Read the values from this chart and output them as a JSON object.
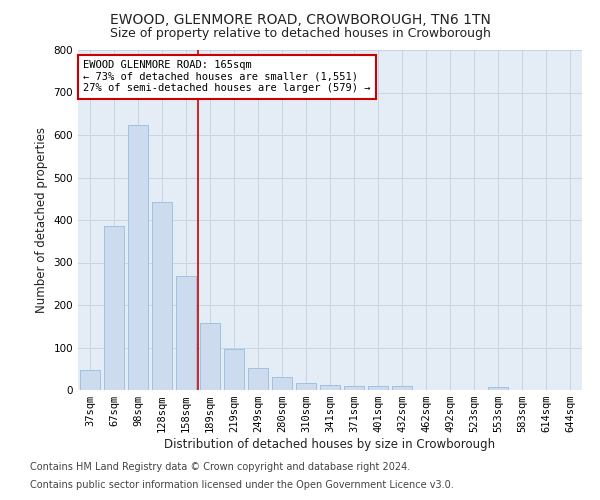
{
  "title": "EWOOD, GLENMORE ROAD, CROWBOROUGH, TN6 1TN",
  "subtitle": "Size of property relative to detached houses in Crowborough",
  "xlabel": "Distribution of detached houses by size in Crowborough",
  "ylabel": "Number of detached properties",
  "categories": [
    "37sqm",
    "67sqm",
    "98sqm",
    "128sqm",
    "158sqm",
    "189sqm",
    "219sqm",
    "249sqm",
    "280sqm",
    "310sqm",
    "341sqm",
    "371sqm",
    "401sqm",
    "432sqm",
    "462sqm",
    "492sqm",
    "523sqm",
    "553sqm",
    "583sqm",
    "614sqm",
    "644sqm"
  ],
  "values": [
    48,
    385,
    623,
    443,
    268,
    157,
    97,
    52,
    30,
    17,
    12,
    10,
    10,
    10,
    0,
    0,
    0,
    7,
    0,
    0,
    0
  ],
  "bar_color": "#ccdcee",
  "bar_edgecolor": "#99bbdd",
  "grid_color": "#c8d4e4",
  "bg_color": "#e4ecf6",
  "red_line_x": 4.5,
  "annotation_text": "EWOOD GLENMORE ROAD: 165sqm\n← 73% of detached houses are smaller (1,551)\n27% of semi-detached houses are larger (579) →",
  "annotation_box_facecolor": "#ffffff",
  "annotation_box_edgecolor": "#cc0000",
  "footer_line1": "Contains HM Land Registry data © Crown copyright and database right 2024.",
  "footer_line2": "Contains public sector information licensed under the Open Government Licence v3.0.",
  "ylim": [
    0,
    800
  ],
  "yticks": [
    0,
    100,
    200,
    300,
    400,
    500,
    600,
    700,
    800
  ],
  "title_fontsize": 10,
  "subtitle_fontsize": 9,
  "axis_label_fontsize": 8.5,
  "tick_fontsize": 7.5,
  "annotation_fontsize": 7.5,
  "footer_fontsize": 7
}
